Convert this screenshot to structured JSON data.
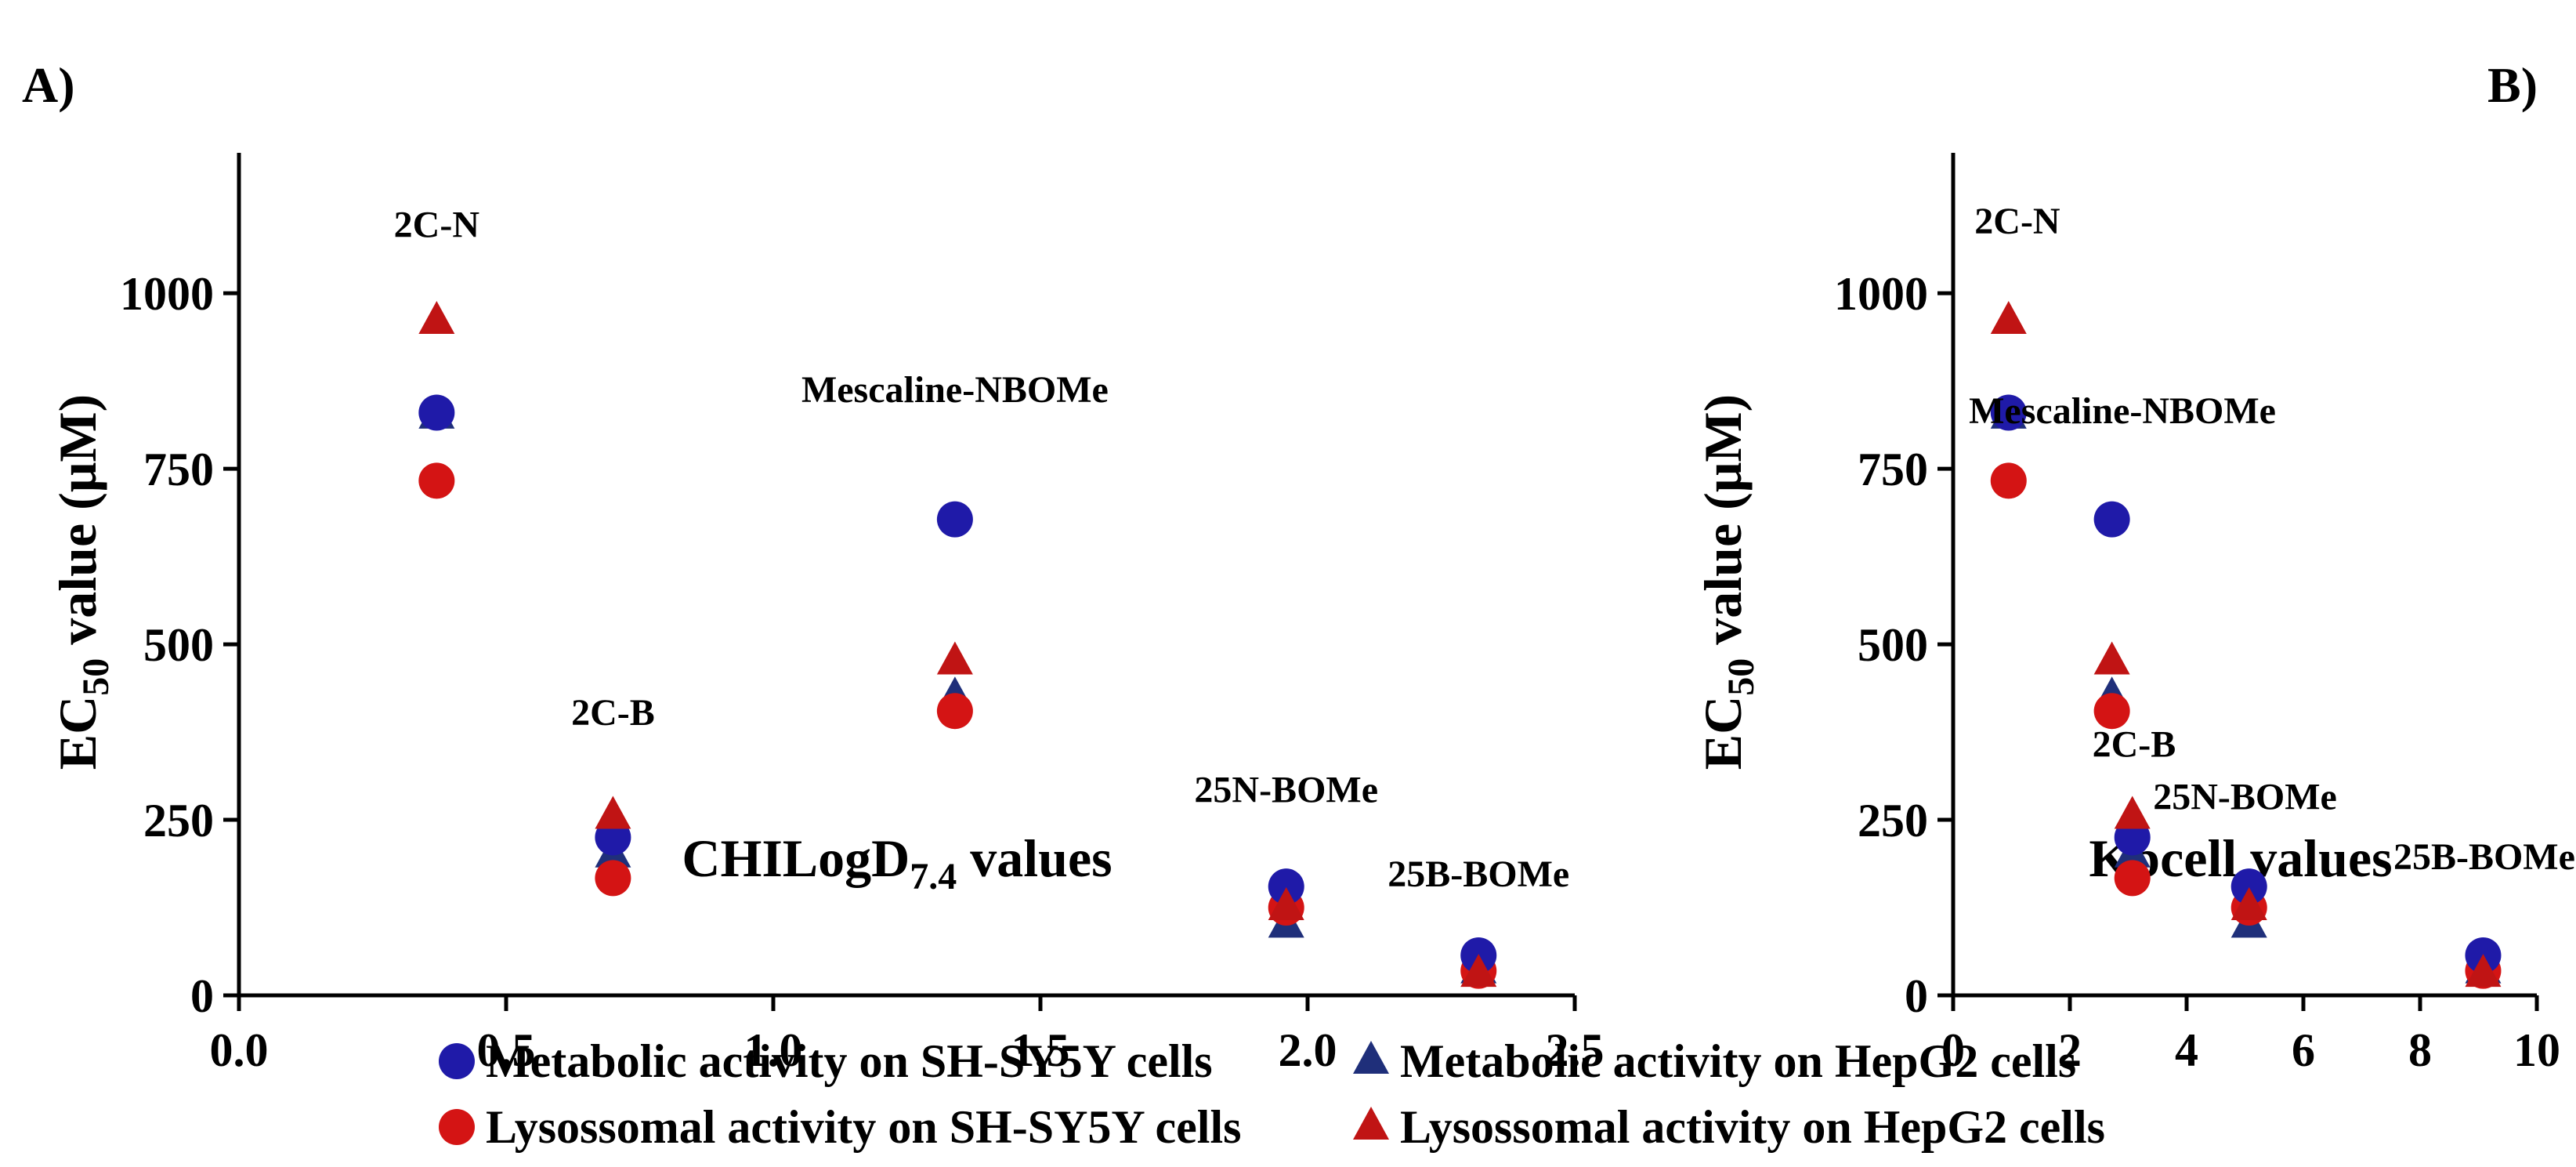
{
  "colors": {
    "metabolic_sh": "#1f1aa8",
    "lysosomal_sh": "#d41414",
    "metabolic_hepg2": "#1f2f7a",
    "lysosomal_hepg2": "#c01414"
  },
  "legend": {
    "items": [
      {
        "label": "Metabolic activity on SH-SY5Y cells",
        "marker": "circle",
        "color_key": "metabolic_sh"
      },
      {
        "label": "Metabolic activity on HepG2 cells",
        "marker": "triangle",
        "color_key": "metabolic_hepg2"
      },
      {
        "label": "Lysossomal activity on SH-SY5Y cells",
        "marker": "circle",
        "color_key": "lysosomal_sh"
      },
      {
        "label": "Lysossomal activity on HepG2 cells",
        "marker": "triangle",
        "color_key": "lysosomal_hepg2"
      }
    ]
  },
  "chart_data": [
    {
      "type": "scatter",
      "panel_label": "A)",
      "xlabel": "CHILogD",
      "xlabel_sub": "7.4",
      "xlabel_suffix": " values",
      "ylabel_pre": "EC",
      "ylabel_sub": "50",
      "ylabel_post": " value (μM)",
      "xlim": [
        0,
        2.5
      ],
      "ylim": [
        0,
        1200
      ],
      "xticks": [
        0,
        0.5,
        1.0,
        1.5,
        2.0,
        2.5
      ],
      "xtick_labels": [
        "0.0",
        "0.5",
        "1.0",
        "1.5",
        "2.0",
        "2.5"
      ],
      "yticks": [
        0,
        250,
        500,
        750,
        1000
      ],
      "ytick_labels": [
        "0",
        "250",
        "500",
        "750",
        "1000"
      ],
      "series": [
        {
          "name": "Metabolic activity on SH-SY5Y cells",
          "marker": "circle",
          "color_key": "metabolic_sh",
          "points": [
            [
              0.37,
              830
            ],
            [
              0.7,
              225
            ],
            [
              1.34,
              678
            ],
            [
              1.96,
              155
            ],
            [
              2.32,
              57
            ]
          ]
        },
        {
          "name": "Metabolic activity on HepG2 cells",
          "marker": "triangle",
          "color_key": "metabolic_hepg2",
          "points": [
            [
              0.37,
              825
            ],
            [
              0.7,
              200
            ],
            [
              1.34,
              425
            ],
            [
              1.96,
              100
            ],
            [
              2.32,
              35
            ]
          ]
        },
        {
          "name": "Lysossomal activity on SH-SY5Y cells",
          "marker": "circle",
          "color_key": "lysosomal_sh",
          "points": [
            [
              0.37,
              733
            ],
            [
              0.7,
              167
            ],
            [
              1.34,
              405
            ],
            [
              1.96,
              125
            ],
            [
              2.32,
              35
            ]
          ]
        },
        {
          "name": "Lysossomal activity on HepG2 cells",
          "marker": "triangle",
          "color_key": "lysosomal_hepg2",
          "points": [
            [
              0.37,
              960
            ],
            [
              0.7,
              255
            ],
            [
              1.34,
              475
            ],
            [
              1.96,
              125
            ],
            [
              2.32,
              30
            ]
          ]
        }
      ],
      "annotations": [
        {
          "text": "2C-N",
          "x": 0.37,
          "y": 1080
        },
        {
          "text": "2C-B",
          "x": 0.7,
          "y": 385
        },
        {
          "text": "Mescaline-NBOMe",
          "x": 1.34,
          "y": 845
        },
        {
          "text": "25N-BOMe",
          "x": 1.96,
          "y": 275
        },
        {
          "text": "25B-BOMe",
          "x": 2.32,
          "y": 155
        }
      ]
    },
    {
      "type": "scatter",
      "panel_label": "B)",
      "xlabel": "Kpcell values",
      "xlabel_sub": "",
      "xlabel_suffix": "",
      "ylabel_pre": "EC",
      "ylabel_sub": "50",
      "ylabel_post": " value (μM)",
      "xlim": [
        0,
        10
      ],
      "ylim": [
        0,
        1200
      ],
      "xticks": [
        0,
        2,
        4,
        6,
        8,
        10
      ],
      "xtick_labels": [
        "0",
        "2",
        "4",
        "6",
        "8",
        "10"
      ],
      "yticks": [
        0,
        250,
        500,
        750,
        1000
      ],
      "ytick_labels": [
        "0",
        "250",
        "500",
        "750",
        "1000"
      ],
      "series": [
        {
          "name": "Metabolic activity on SH-SY5Y cells",
          "marker": "circle",
          "color_key": "metabolic_sh",
          "points": [
            [
              0.95,
              830
            ],
            [
              3.07,
              225
            ],
            [
              2.72,
              678
            ],
            [
              5.07,
              155
            ],
            [
              9.08,
              57
            ]
          ]
        },
        {
          "name": "Metabolic activity on HepG2 cells",
          "marker": "triangle",
          "color_key": "metabolic_hepg2",
          "points": [
            [
              0.95,
              825
            ],
            [
              3.07,
              200
            ],
            [
              2.72,
              425
            ],
            [
              5.07,
              100
            ],
            [
              9.08,
              35
            ]
          ]
        },
        {
          "name": "Lysossomal activity on SH-SY5Y cells",
          "marker": "circle",
          "color_key": "lysosomal_sh",
          "points": [
            [
              0.95,
              733
            ],
            [
              3.07,
              167
            ],
            [
              2.72,
              405
            ],
            [
              5.07,
              125
            ],
            [
              9.08,
              35
            ]
          ]
        },
        {
          "name": "Lysossomal activity on HepG2 cells",
          "marker": "triangle",
          "color_key": "lysosomal_hepg2",
          "points": [
            [
              0.95,
              960
            ],
            [
              3.07,
              255
            ],
            [
              2.72,
              475
            ],
            [
              5.07,
              125
            ],
            [
              9.08,
              30
            ]
          ]
        }
      ],
      "annotations": [
        {
          "text": "2C-N",
          "x": 1.1,
          "y": 1085
        },
        {
          "text": "Mescaline-NBOMe",
          "x": 2.9,
          "y": 815
        },
        {
          "text": "2C-B",
          "x": 3.1,
          "y": 340
        },
        {
          "text": "25N-BOMe",
          "x": 5.0,
          "y": 265
        },
        {
          "text": "25B-BOMe",
          "x": 9.1,
          "y": 180
        }
      ]
    }
  ]
}
